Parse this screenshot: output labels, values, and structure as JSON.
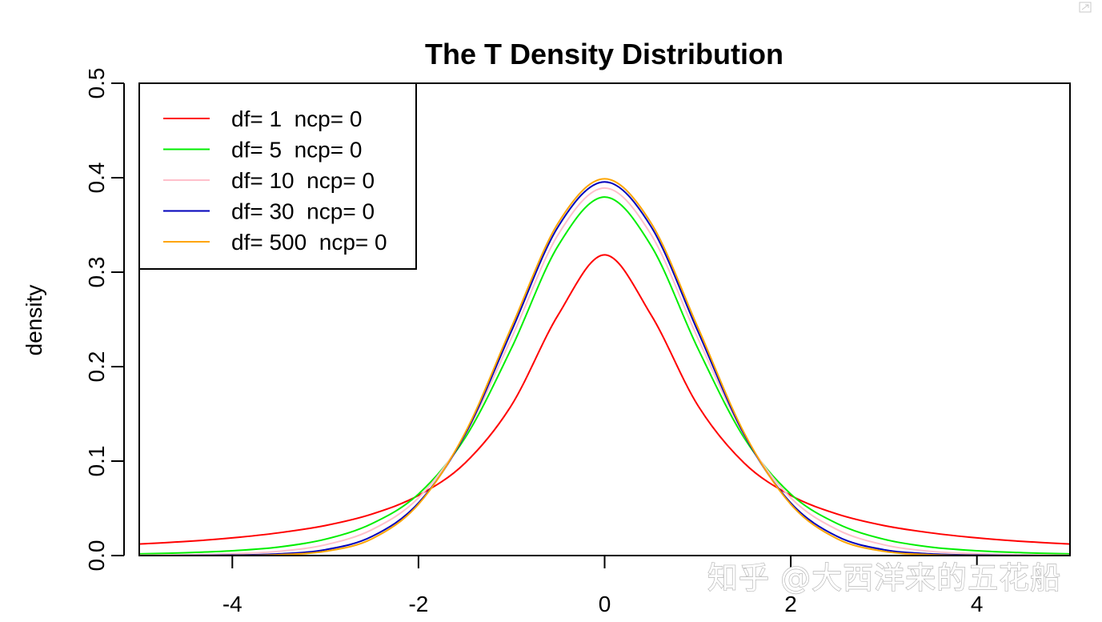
{
  "chart_data": {
    "type": "line",
    "title": "The T Density Distribution",
    "xlabel": "",
    "ylabel": "density",
    "xlim": [
      -5,
      5
    ],
    "ylim": [
      0,
      0.5
    ],
    "x_ticks": [
      "-4",
      "-2",
      "0",
      "2",
      "4"
    ],
    "y_ticks": [
      "0.0",
      "0.1",
      "0.2",
      "0.3",
      "0.4",
      "0.5"
    ],
    "grid": false,
    "legend_position": "top-left",
    "x": [
      -5,
      -4.5,
      -4,
      -3.5,
      -3,
      -2.5,
      -2,
      -1.5,
      -1,
      -0.5,
      0,
      0.5,
      1,
      1.5,
      2,
      2.5,
      3,
      3.5,
      4,
      4.5,
      5
    ],
    "series": [
      {
        "name": "df= 1  ncp= 0",
        "color": "#ff0000",
        "values": [
          0.0122,
          0.0149,
          0.0187,
          0.0241,
          0.0318,
          0.0439,
          0.0637,
          0.0979,
          0.1592,
          0.2546,
          0.3183,
          0.2546,
          0.1592,
          0.0979,
          0.0637,
          0.0439,
          0.0318,
          0.0241,
          0.0187,
          0.0149,
          0.0122
        ]
      },
      {
        "name": "df= 5  ncp= 0",
        "color": "#00ee00",
        "values": [
          0.0018,
          0.003,
          0.0051,
          0.009,
          0.0173,
          0.0338,
          0.0651,
          0.1245,
          0.2197,
          0.3279,
          0.3796,
          0.3279,
          0.2197,
          0.1245,
          0.0651,
          0.0338,
          0.0173,
          0.009,
          0.0051,
          0.003,
          0.0018
        ]
      },
      {
        "name": "df= 10  ncp= 0",
        "color": "#ffc0cb",
        "values": [
          0.0004,
          0.0009,
          0.002,
          0.0045,
          0.0114,
          0.0274,
          0.0611,
          0.1274,
          0.2304,
          0.3397,
          0.3891,
          0.3397,
          0.2304,
          0.1274,
          0.0611,
          0.0274,
          0.0114,
          0.0045,
          0.002,
          0.0009,
          0.0004
        ]
      },
      {
        "name": "df= 30  ncp= 0",
        "color": "#0000bb",
        "values": [
          0.0,
          0.0001,
          0.0005,
          0.0018,
          0.0062,
          0.0202,
          0.0557,
          0.128,
          0.2378,
          0.3481,
          0.3956,
          0.3481,
          0.2378,
          0.128,
          0.0557,
          0.0202,
          0.0062,
          0.0018,
          0.0005,
          0.0001,
          0.0
        ]
      },
      {
        "name": "df= 500  ncp= 0",
        "color": "#ffa500",
        "values": [
          0.0,
          0.0,
          0.0001,
          0.0009,
          0.0045,
          0.0177,
          0.0543,
          0.1297,
          0.242,
          0.3519,
          0.3988,
          0.3519,
          0.242,
          0.1297,
          0.0543,
          0.0177,
          0.0045,
          0.0009,
          0.0001,
          0.0,
          0.0
        ]
      }
    ]
  },
  "watermark": {
    "text": "知乎 @大西洋来的五花船"
  },
  "icons": {
    "corner_icon": "image-expand-icon"
  }
}
